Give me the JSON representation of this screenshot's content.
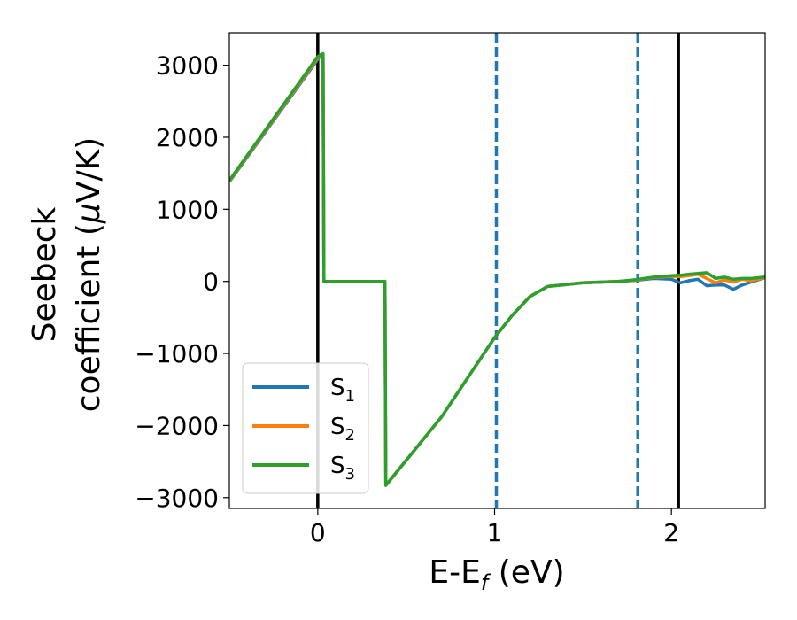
{
  "chart_data": {
    "type": "line",
    "xlabel": {
      "base": "E-E",
      "sub": "f",
      "unit": " (eV)"
    },
    "ylabel": {
      "line1": "Seebeck",
      "line2a": "coefficient  (",
      "mu": "μ",
      "line2b": "V/K)"
    },
    "xlim": [
      -0.5,
      2.53
    ],
    "ylim": [
      -3150,
      3450
    ],
    "xticks": [
      0,
      1,
      2
    ],
    "xtick_labels": [
      "0",
      "1",
      "2"
    ],
    "yticks": [
      -3000,
      -2000,
      -1000,
      0,
      1000,
      2000,
      3000
    ],
    "ytick_labels": [
      "−3000",
      "−2000",
      "−1000",
      "0",
      "1000",
      "2000",
      "3000"
    ],
    "grid": false,
    "legend_position": "lower-left",
    "vlines": [
      {
        "x": 0.0,
        "style": "solid",
        "color": "#000000"
      },
      {
        "x": 1.01,
        "style": "dashed",
        "color": "#1f77b4"
      },
      {
        "x": 1.81,
        "style": "dashed",
        "color": "#1f77b4"
      },
      {
        "x": 2.04,
        "style": "solid",
        "color": "#000000"
      }
    ],
    "series": [
      {
        "name": "S1",
        "label_base": "S",
        "label_sub": "1",
        "color": "#1f77b4",
        "points": [
          [
            -0.5,
            1380
          ],
          [
            0.0,
            3080
          ],
          [
            0.02,
            3140
          ],
          [
            0.03,
            3160
          ],
          [
            0.035,
            0
          ],
          [
            0.38,
            0
          ],
          [
            0.385,
            -2830
          ],
          [
            0.7,
            -1880
          ],
          [
            1.0,
            -780
          ],
          [
            1.1,
            -470
          ],
          [
            1.2,
            -210
          ],
          [
            1.3,
            -70
          ],
          [
            1.5,
            -20
          ],
          [
            1.7,
            0
          ],
          [
            1.8,
            15
          ],
          [
            1.9,
            40
          ],
          [
            2.0,
            30
          ],
          [
            2.05,
            -20
          ],
          [
            2.1,
            10
          ],
          [
            2.15,
            30
          ],
          [
            2.2,
            -60
          ],
          [
            2.25,
            -50
          ],
          [
            2.3,
            -50
          ],
          [
            2.35,
            -110
          ],
          [
            2.4,
            -50
          ],
          [
            2.45,
            -10
          ],
          [
            2.53,
            50
          ]
        ]
      },
      {
        "name": "S2",
        "label_base": "S",
        "label_sub": "2",
        "color": "#ff7f0e",
        "points": [
          [
            -0.5,
            1390
          ],
          [
            0.0,
            3100
          ],
          [
            0.02,
            3145
          ],
          [
            0.03,
            3160
          ],
          [
            0.035,
            0
          ],
          [
            0.38,
            0
          ],
          [
            0.385,
            -2830
          ],
          [
            0.7,
            -1880
          ],
          [
            1.0,
            -780
          ],
          [
            1.1,
            -470
          ],
          [
            1.2,
            -210
          ],
          [
            1.3,
            -70
          ],
          [
            1.5,
            -20
          ],
          [
            1.7,
            0
          ],
          [
            1.8,
            20
          ],
          [
            1.9,
            55
          ],
          [
            2.0,
            70
          ],
          [
            2.05,
            65
          ],
          [
            2.1,
            80
          ],
          [
            2.15,
            100
          ],
          [
            2.2,
            40
          ],
          [
            2.25,
            -20
          ],
          [
            2.3,
            20
          ],
          [
            2.35,
            -10
          ],
          [
            2.4,
            30
          ],
          [
            2.45,
            10
          ],
          [
            2.53,
            50
          ]
        ]
      },
      {
        "name": "S3",
        "label_base": "S",
        "label_sub": "3",
        "color": "#2ca02c",
        "points": [
          [
            -0.5,
            1400
          ],
          [
            0.0,
            3120
          ],
          [
            0.02,
            3150
          ],
          [
            0.03,
            3160
          ],
          [
            0.035,
            0
          ],
          [
            0.38,
            0
          ],
          [
            0.385,
            -2830
          ],
          [
            0.7,
            -1880
          ],
          [
            1.0,
            -780
          ],
          [
            1.1,
            -470
          ],
          [
            1.2,
            -210
          ],
          [
            1.3,
            -70
          ],
          [
            1.5,
            -20
          ],
          [
            1.7,
            0
          ],
          [
            1.8,
            25
          ],
          [
            1.9,
            60
          ],
          [
            2.0,
            80
          ],
          [
            2.05,
            85
          ],
          [
            2.1,
            100
          ],
          [
            2.15,
            110
          ],
          [
            2.2,
            120
          ],
          [
            2.25,
            40
          ],
          [
            2.3,
            60
          ],
          [
            2.35,
            30
          ],
          [
            2.4,
            40
          ],
          [
            2.45,
            40
          ],
          [
            2.53,
            60
          ]
        ]
      }
    ]
  }
}
